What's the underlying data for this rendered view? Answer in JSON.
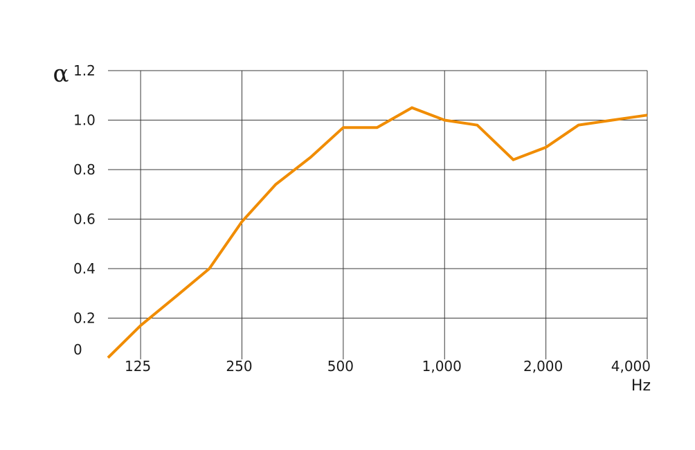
{
  "chart_data": {
    "type": "line",
    "title": "",
    "xlabel": "Hz",
    "ylabel": "α",
    "x_scale": "log",
    "xlim": [
      100,
      4000
    ],
    "ylim": [
      0,
      1.2
    ],
    "grid": true,
    "line_color": "#f08c00",
    "x_ticks": [
      {
        "value": 125,
        "label": "125"
      },
      {
        "value": 250,
        "label": "250"
      },
      {
        "value": 500,
        "label": "500"
      },
      {
        "value": 1000,
        "label": "1,000"
      },
      {
        "value": 2000,
        "label": "2,000"
      },
      {
        "value": 4000,
        "label": "4,000"
      }
    ],
    "y_ticks": [
      {
        "value": 0,
        "label": "0"
      },
      {
        "value": 0.2,
        "label": "0.2"
      },
      {
        "value": 0.4,
        "label": "0.4"
      },
      {
        "value": 0.6,
        "label": "0.6"
      },
      {
        "value": 0.8,
        "label": "0.8"
      },
      {
        "value": 1.0,
        "label": "1.0"
      },
      {
        "value": 1.2,
        "label": "1.2"
      }
    ],
    "series": [
      {
        "x": [
          100,
          125,
          160,
          200,
          250,
          315,
          400,
          500,
          630,
          800,
          1000,
          1250,
          1600,
          2000,
          2500,
          3150,
          4000
        ],
        "y": [
          0.04,
          0.17,
          0.29,
          0.4,
          0.59,
          0.74,
          0.85,
          0.97,
          0.97,
          1.05,
          1.0,
          0.98,
          0.84,
          0.89,
          0.98,
          1.0,
          1.02
        ]
      }
    ]
  }
}
